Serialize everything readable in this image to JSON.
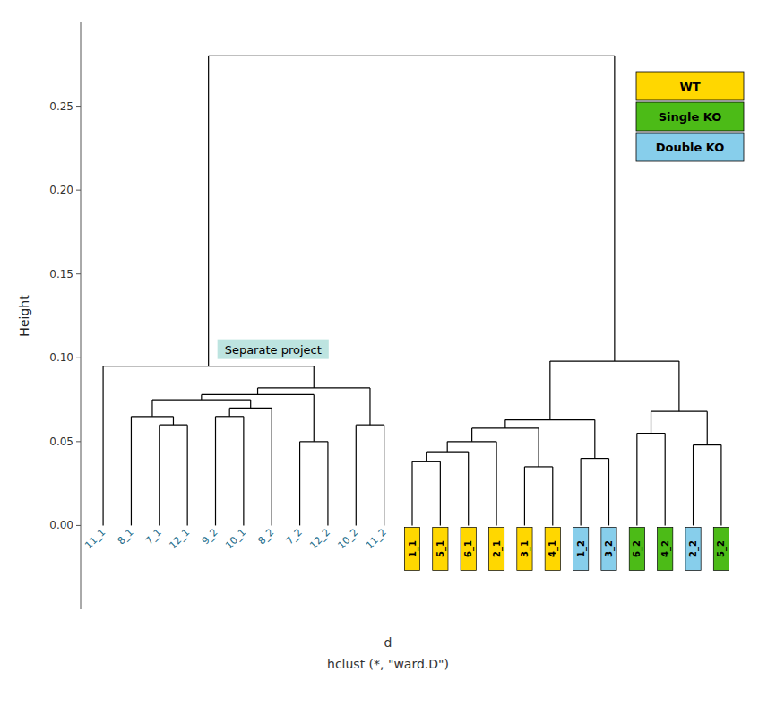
{
  "chart_data": {
    "type": "dendrogram",
    "ylabel": "Height",
    "xlabel": "d",
    "subtitle": "hclust (*, \"ward.D\")",
    "categories": [
      "11_1",
      "8_1",
      "7_1",
      "12_1",
      "9_2",
      "10_1",
      "8_2",
      "7_2",
      "12_2",
      "10_2",
      "11_2",
      "1_1",
      "5_1",
      "6_1",
      "2_1",
      "3_1",
      "4_1",
      "1_2",
      "3_2",
      "6_2",
      "4_2",
      "2_2",
      "5_2"
    ],
    "colors": [
      null,
      null,
      null,
      null,
      null,
      null,
      null,
      null,
      null,
      null,
      null,
      "#FFD700",
      "#FFD700",
      "#FFD700",
      "#FFD700",
      "#FFD700",
      "#FFD700",
      "#87CEEB",
      "#87CEEB",
      "#4CBB17",
      "#4CBB17",
      "#87CEEB",
      "#4CBB17"
    ],
    "merges": [
      {
        "left": "7_1",
        "right": "12_1",
        "height": 0.06
      },
      {
        "left": "8_1",
        "right": 0,
        "height": 0.065
      },
      {
        "left": "9_2",
        "right": "10_1",
        "height": 0.065
      },
      {
        "left": 2,
        "right": "8_2",
        "height": 0.07
      },
      {
        "left": 1,
        "right": 3,
        "height": 0.075
      },
      {
        "left": "7_2",
        "right": "12_2",
        "height": 0.05
      },
      {
        "left": 4,
        "right": 5,
        "height": 0.078
      },
      {
        "left": "10_2",
        "right": "11_2",
        "height": 0.06
      },
      {
        "left": 6,
        "right": 7,
        "height": 0.082
      },
      {
        "left": "11_1",
        "right": 8,
        "height": 0.095
      },
      {
        "left": "1_1",
        "right": "5_1",
        "height": 0.038
      },
      {
        "left": 10,
        "right": "6_1",
        "height": 0.044
      },
      {
        "left": 11,
        "right": "2_1",
        "height": 0.05
      },
      {
        "left": "3_1",
        "right": "4_1",
        "height": 0.035
      },
      {
        "left": 12,
        "right": 13,
        "height": 0.058
      },
      {
        "left": "1_2",
        "right": "3_2",
        "height": 0.04
      },
      {
        "left": 14,
        "right": 15,
        "height": 0.063
      },
      {
        "left": "6_2",
        "right": "4_2",
        "height": 0.055
      },
      {
        "left": "2_2",
        "right": "5_2",
        "height": 0.048
      },
      {
        "left": 17,
        "right": 18,
        "height": 0.068
      },
      {
        "left": 16,
        "right": 19,
        "height": 0.098
      },
      {
        "left": 9,
        "right": 20,
        "height": 0.28
      }
    ],
    "series": [
      {
        "name": "WT",
        "color": "#FFD700"
      },
      {
        "name": "Single KO",
        "color": "#4CBB17"
      },
      {
        "name": "Double KO",
        "color": "#87CEEB"
      }
    ],
    "legend": "upper right",
    "annotations": [
      {
        "text": "Separate project",
        "color": "#B2DFDB"
      }
    ],
    "ylim": [
      -0.05,
      0.3
    ],
    "yticks": [
      {
        "value": 0.0,
        "label": "0.00"
      },
      {
        "value": 0.05,
        "label": "0.05"
      },
      {
        "value": 0.1,
        "label": "0.10"
      },
      {
        "value": 0.15,
        "label": "0.15"
      },
      {
        "value": 0.2,
        "label": "0.20"
      },
      {
        "value": 0.25,
        "label": "0.25"
      }
    ],
    "grid": false
  }
}
